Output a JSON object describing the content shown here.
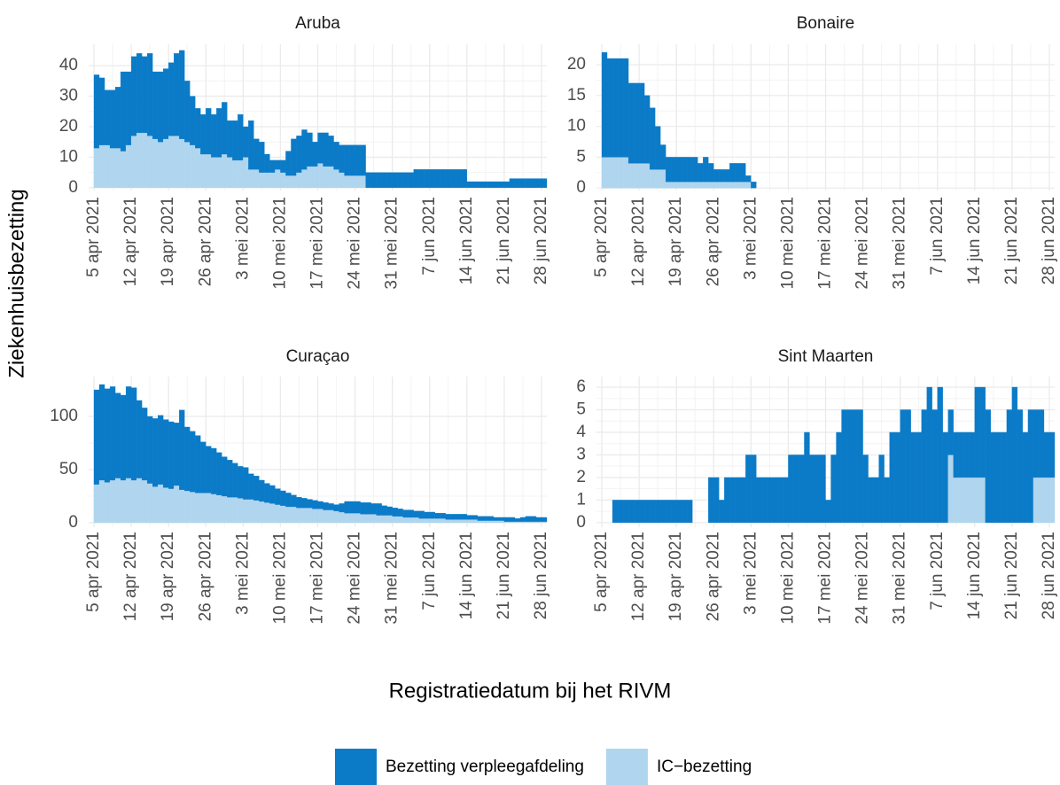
{
  "chart_data": {
    "type": "bar",
    "stacked": true,
    "x_label": "Registratiedatum bij het RIVM",
    "y_label": "Ziekenhuisbezetting",
    "grid": true,
    "legend_position": "bottom",
    "x": [
      "2021-04-05",
      "2021-04-06",
      "2021-04-07",
      "2021-04-08",
      "2021-04-09",
      "2021-04-10",
      "2021-04-11",
      "2021-04-12",
      "2021-04-13",
      "2021-04-14",
      "2021-04-15",
      "2021-04-16",
      "2021-04-17",
      "2021-04-18",
      "2021-04-19",
      "2021-04-20",
      "2021-04-21",
      "2021-04-22",
      "2021-04-23",
      "2021-04-24",
      "2021-04-25",
      "2021-04-26",
      "2021-04-27",
      "2021-04-28",
      "2021-04-29",
      "2021-04-30",
      "2021-05-01",
      "2021-05-02",
      "2021-05-03",
      "2021-05-04",
      "2021-05-05",
      "2021-05-06",
      "2021-05-07",
      "2021-05-08",
      "2021-05-09",
      "2021-05-10",
      "2021-05-11",
      "2021-05-12",
      "2021-05-13",
      "2021-05-14",
      "2021-05-15",
      "2021-05-16",
      "2021-05-17",
      "2021-05-18",
      "2021-05-19",
      "2021-05-20",
      "2021-05-21",
      "2021-05-22",
      "2021-05-23",
      "2021-05-24",
      "2021-05-25",
      "2021-05-26",
      "2021-05-27",
      "2021-05-28",
      "2021-05-29",
      "2021-05-30",
      "2021-05-31",
      "2021-06-01",
      "2021-06-02",
      "2021-06-03",
      "2021-06-04",
      "2021-06-05",
      "2021-06-06",
      "2021-06-07",
      "2021-06-08",
      "2021-06-09",
      "2021-06-10",
      "2021-06-11",
      "2021-06-12",
      "2021-06-13",
      "2021-06-14",
      "2021-06-15",
      "2021-06-16",
      "2021-06-17",
      "2021-06-18",
      "2021-06-19",
      "2021-06-20",
      "2021-06-21",
      "2021-06-22",
      "2021-06-23",
      "2021-06-24",
      "2021-06-25",
      "2021-06-26",
      "2021-06-27",
      "2021-06-28"
    ],
    "xlim": [
      "2021-04-04",
      "2021-06-29"
    ],
    "xticks": [
      {
        "value": "2021-04-05",
        "label": "5 apr 2021"
      },
      {
        "value": "2021-04-12",
        "label": "12 apr 2021"
      },
      {
        "value": "2021-04-19",
        "label": "19 apr 2021"
      },
      {
        "value": "2021-04-26",
        "label": "26 apr 2021"
      },
      {
        "value": "2021-05-03",
        "label": "3 mei 2021"
      },
      {
        "value": "2021-05-10",
        "label": "10 mei 2021"
      },
      {
        "value": "2021-05-17",
        "label": "17 mei 2021"
      },
      {
        "value": "2021-05-24",
        "label": "24 mei 2021"
      },
      {
        "value": "2021-05-31",
        "label": "31 mei 2021"
      },
      {
        "value": "2021-06-07",
        "label": "7 jun 2021"
      },
      {
        "value": "2021-06-14",
        "label": "14 jun 2021"
      },
      {
        "value": "2021-06-21",
        "label": "21 jun 2021"
      },
      {
        "value": "2021-06-28",
        "label": "28 jun 2021"
      }
    ],
    "series": [
      {
        "name": "IC−bezetting",
        "color": "#b0d5ee"
      },
      {
        "name": "Bezetting verpleegafdeling",
        "color": "#0b7bc8"
      }
    ],
    "legend_order": [
      1,
      0
    ],
    "facets": [
      {
        "title": "Aruba",
        "ylim": [
          -0.9,
          47
        ],
        "yticks": [
          0,
          10,
          20,
          30,
          40
        ],
        "values": [
          [
            13,
            14,
            14,
            13,
            13,
            12,
            14,
            17,
            18,
            18,
            17,
            16,
            15,
            16,
            17,
            17,
            16,
            15,
            14,
            13,
            11,
            11,
            10,
            10,
            11,
            10,
            9,
            9,
            10,
            6,
            6,
            5,
            5,
            5,
            6,
            5,
            4,
            4,
            5,
            6,
            7,
            7,
            8,
            7,
            7,
            6,
            5,
            4,
            4,
            4,
            4,
            0,
            0,
            0,
            0,
            0,
            0,
            0,
            0,
            0,
            0,
            0,
            0,
            0,
            0,
            0,
            0,
            0,
            0,
            0,
            0,
            0,
            0,
            0,
            0,
            0,
            0,
            0,
            0,
            0,
            0,
            0,
            0,
            0,
            0
          ],
          [
            24,
            22,
            18,
            19,
            20,
            26,
            24,
            26,
            26,
            25,
            27,
            22,
            23,
            23,
            24,
            27,
            29,
            20,
            16,
            13,
            13,
            15,
            14,
            16,
            17,
            12,
            13,
            15,
            10,
            16,
            10,
            10,
            6,
            4,
            3,
            4,
            8,
            12,
            12,
            13,
            11,
            8,
            10,
            11,
            10,
            9,
            9,
            10,
            10,
            10,
            10,
            5,
            5,
            5,
            5,
            5,
            5,
            5,
            5,
            5,
            6,
            6,
            6,
            6,
            6,
            6,
            6,
            6,
            6,
            6,
            2,
            2,
            2,
            2,
            2,
            2,
            2,
            2,
            3,
            3,
            3,
            3,
            3,
            3,
            3
          ]
        ]
      },
      {
        "title": "Bonaire",
        "ylim": [
          -0.4,
          23.3
        ],
        "yticks": [
          0,
          5,
          10,
          15,
          20
        ],
        "values": [
          [
            5,
            5,
            5,
            5,
            5,
            4,
            4,
            4,
            4,
            3,
            3,
            3,
            1,
            1,
            1,
            1,
            1,
            1,
            1,
            1,
            1,
            1,
            1,
            1,
            1,
            1,
            1,
            1,
            0,
            0,
            0,
            0,
            0,
            0,
            0,
            0,
            0,
            0,
            0,
            0,
            0,
            0,
            0,
            0,
            0,
            0,
            0,
            0,
            0,
            0,
            0,
            0,
            0,
            0,
            0,
            0,
            0,
            0,
            0,
            0,
            0,
            0,
            0,
            0,
            0,
            0,
            0,
            0,
            0,
            0,
            0,
            0,
            0,
            0,
            0,
            0,
            0,
            0,
            0,
            0,
            0,
            0,
            0,
            0,
            0
          ],
          [
            17,
            16,
            16,
            16,
            16,
            13,
            13,
            13,
            11,
            10,
            7,
            4,
            4,
            4,
            4,
            4,
            4,
            4,
            3,
            4,
            3,
            2,
            2,
            2,
            3,
            3,
            3,
            1,
            1,
            0,
            0,
            0,
            0,
            0,
            0,
            0,
            0,
            0,
            0,
            0,
            0,
            0,
            0,
            0,
            0,
            0,
            0,
            0,
            0,
            0,
            0,
            0,
            0,
            0,
            0,
            0,
            0,
            0,
            0,
            0,
            0,
            0,
            0,
            0,
            0,
            0,
            0,
            0,
            0,
            0,
            0,
            0,
            0,
            0,
            0,
            0,
            0,
            0,
            0,
            0,
            0,
            0,
            0,
            0,
            0
          ]
        ]
      },
      {
        "title": "Curaçao",
        "ylim": [
          -4.2,
          137.5
        ],
        "yticks": [
          0,
          50,
          100
        ],
        "values": [
          [
            36,
            40,
            38,
            40,
            42,
            40,
            42,
            40,
            42,
            40,
            37,
            34,
            36,
            33,
            32,
            35,
            31,
            30,
            29,
            28,
            28,
            28,
            27,
            26,
            25,
            24,
            24,
            23,
            22,
            22,
            21,
            20,
            19,
            18,
            17,
            16,
            15,
            15,
            14,
            14,
            14,
            13,
            13,
            12,
            12,
            11,
            10,
            9,
            9,
            9,
            8,
            8,
            8,
            7,
            7,
            7,
            6,
            6,
            5,
            5,
            5,
            4,
            4,
            4,
            4,
            4,
            3,
            3,
            3,
            3,
            3,
            3,
            2,
            2,
            2,
            2,
            2,
            1,
            1,
            1,
            1,
            1,
            1,
            1,
            1
          ],
          [
            89,
            90,
            88,
            88,
            80,
            80,
            86,
            87,
            73,
            68,
            63,
            64,
            65,
            64,
            63,
            59,
            75,
            60,
            57,
            54,
            48,
            44,
            43,
            40,
            37,
            35,
            32,
            30,
            30,
            24,
            23,
            20,
            18,
            17,
            15,
            14,
            13,
            11,
            10,
            9,
            8,
            8,
            7,
            7,
            6,
            6,
            8,
            11,
            11,
            11,
            11,
            11,
            10,
            11,
            9,
            8,
            8,
            7,
            7,
            7,
            6,
            7,
            6,
            6,
            5,
            5,
            5,
            5,
            5,
            5,
            4,
            4,
            4,
            4,
            4,
            3,
            3,
            4,
            4,
            3,
            4,
            5,
            5,
            4,
            4
          ]
        ]
      },
      {
        "title": "Sint Maarten",
        "ylim": [
          -0.2,
          6.47
        ],
        "yticks": [
          0,
          1,
          2,
          3,
          4,
          5,
          6
        ],
        "values": [
          [
            0,
            0,
            0,
            0,
            0,
            0,
            0,
            0,
            0,
            0,
            0,
            0,
            0,
            0,
            0,
            0,
            0,
            0,
            0,
            0,
            0,
            0,
            0,
            0,
            0,
            0,
            0,
            0,
            0,
            0,
            0,
            0,
            0,
            0,
            0,
            0,
            0,
            0,
            0,
            0,
            0,
            0,
            0,
            0,
            0,
            0,
            0,
            0,
            0,
            0,
            0,
            0,
            0,
            0,
            0,
            0,
            0,
            0,
            0,
            0,
            0,
            0,
            0,
            0,
            0,
            3,
            2,
            2,
            2,
            2,
            2,
            2,
            0,
            0,
            0,
            0,
            0,
            0,
            0,
            0,
            0,
            2,
            2,
            2,
            2
          ],
          [
            0,
            0,
            1,
            1,
            1,
            1,
            1,
            1,
            1,
            1,
            1,
            1,
            1,
            1,
            1,
            1,
            1,
            0,
            0,
            0,
            2,
            2,
            1,
            2,
            2,
            2,
            2,
            3,
            3,
            2,
            2,
            2,
            2,
            2,
            2,
            3,
            3,
            3,
            4,
            3,
            3,
            3,
            1,
            3,
            4,
            5,
            5,
            5,
            5,
            3,
            2,
            2,
            3,
            2,
            4,
            4,
            5,
            5,
            4,
            4,
            5,
            6,
            5,
            6,
            4,
            2,
            2,
            2,
            2,
            2,
            4,
            4,
            5,
            4,
            4,
            4,
            5,
            6,
            5,
            4,
            5,
            3,
            3,
            2,
            2
          ]
        ]
      }
    ]
  }
}
